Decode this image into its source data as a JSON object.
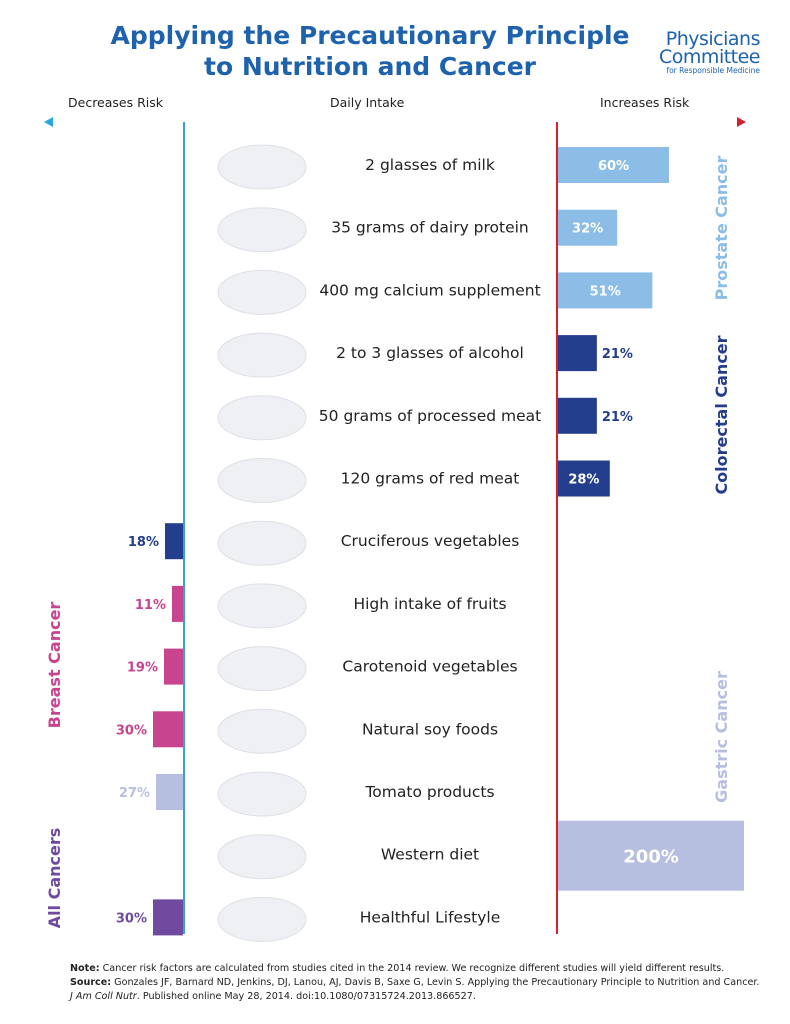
{
  "title": {
    "line1": "Applying the Precautionary Principle",
    "line2": "to Nutrition and Cancer"
  },
  "logo": {
    "line1": "Physicians",
    "line2": "Committee",
    "line3": "for Responsible Medicine"
  },
  "headers": {
    "left": "Decreases Risk",
    "center": "Daily Intake",
    "right": "Increases Risk"
  },
  "colors": {
    "title": "#1e62ae",
    "prostate": "#8cbde6",
    "colorectal": "#243e8e",
    "breast": "#c8448f",
    "gastric": "#b7bfe0",
    "all_cancers": "#6f4a9e",
    "left_axis": "#3aa0dc",
    "right_axis": "#d4202a"
  },
  "chart_data": {
    "type": "bar",
    "categories": [
      "2 glasses of milk",
      "35 grams of dairy protein",
      "400 mg calcium supplement",
      "2 to 3 glasses of alcohol",
      "50 grams of processed meat",
      "120 grams of red meat",
      "Cruciferous vegetables",
      "High intake of fruits",
      "Carotenoid vegetables",
      "Natural soy foods",
      "Tomato products",
      "Western diet",
      "Healthful Lifestyle"
    ],
    "values": [
      60,
      32,
      51,
      21,
      21,
      28,
      -18,
      -11,
      -19,
      -30,
      -27,
      200,
      -30
    ],
    "value_labels": [
      "60%",
      "32%",
      "51%",
      "21%",
      "21%",
      "28%",
      "18%",
      "11%",
      "19%",
      "30%",
      "27%",
      "200%",
      "30%"
    ],
    "groups": [
      "prostate",
      "prostate",
      "prostate",
      "colorectal",
      "colorectal",
      "colorectal",
      "colorectal",
      "breast",
      "breast",
      "breast",
      "gastric",
      "gastric",
      "all_cancers"
    ],
    "group_labels": [
      {
        "key": "prostate",
        "text": "Prostate Cancer"
      },
      {
        "key": "colorectal",
        "text": "Colorectal Cancer"
      },
      {
        "key": "breast",
        "text": "Breast Cancer"
      },
      {
        "key": "gastric",
        "text": "Gastric Cancer"
      },
      {
        "key": "all_cancers",
        "text": "All Cancers"
      }
    ]
  },
  "notes": {
    "note_label": "Note:",
    "note_text": " Cancer risk factors are calculated from studies cited in the 2014 review. We recognize different studies will yield different results.",
    "source_label": "Source:",
    "source_text": " Gonzales JF, Barnard ND, Jenkins, DJ, Lanou, AJ, Davis B, Saxe G, Levin S. Applying the Precautionary Principle to Nutrition and Cancer.",
    "journal": "J Am Coll Nutr",
    "journal_tail": ". Published online May 28, 2014. doi:10.1080/07315724.2013.866527."
  }
}
